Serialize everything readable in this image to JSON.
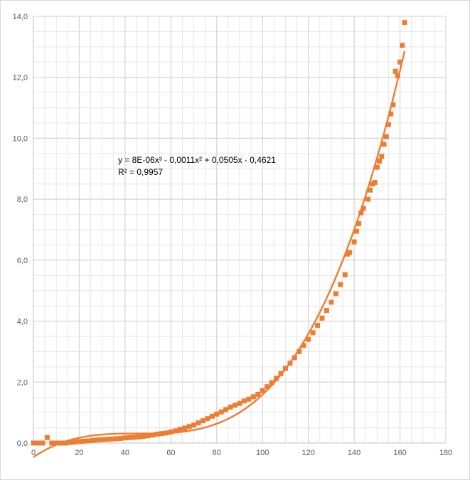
{
  "chart_data": {
    "type": "scatter",
    "title": "",
    "xlabel": "",
    "ylabel": "",
    "xlim": [
      0,
      180
    ],
    "ylim": [
      0,
      14
    ],
    "x_ticks": [
      "0",
      "20",
      "40",
      "60",
      "80",
      "100",
      "120",
      "140",
      "160",
      "180"
    ],
    "y_ticks": [
      "0,0",
      "2,0",
      "4,0",
      "6,0",
      "8,0",
      "10,0",
      "12,0",
      "14,0"
    ],
    "grid": true,
    "legend": "none",
    "marker_color": "#ED7D31",
    "trendline": {
      "type": "polynomial-3",
      "coefficients": [
        8e-06,
        -0.0011,
        0.0505,
        -0.4621
      ],
      "equation_label": "y = 8E-06x³ - 0,0011x² + 0,0505x - 0,4621",
      "r2_label": "R² = 0,9957",
      "color": "#ED7D31"
    },
    "series": [
      {
        "points": [
          [
            0,
            0.0
          ],
          [
            2,
            0.0
          ],
          [
            4,
            0.0
          ],
          [
            6,
            0.18
          ],
          [
            8,
            0.0
          ],
          [
            10,
            0.0
          ],
          [
            12,
            0.0
          ],
          [
            14,
            0.0
          ],
          [
            16,
            0.02
          ],
          [
            18,
            0.03
          ],
          [
            20,
            0.05
          ],
          [
            22,
            0.06
          ],
          [
            24,
            0.07
          ],
          [
            26,
            0.09
          ],
          [
            28,
            0.1
          ],
          [
            30,
            0.11
          ],
          [
            32,
            0.12
          ],
          [
            34,
            0.13
          ],
          [
            36,
            0.14
          ],
          [
            38,
            0.15
          ],
          [
            40,
            0.17
          ],
          [
            42,
            0.18
          ],
          [
            44,
            0.19
          ],
          [
            46,
            0.2
          ],
          [
            48,
            0.22
          ],
          [
            50,
            0.24
          ],
          [
            52,
            0.26
          ],
          [
            54,
            0.29
          ],
          [
            56,
            0.31
          ],
          [
            58,
            0.33
          ],
          [
            60,
            0.36
          ],
          [
            62,
            0.4
          ],
          [
            64,
            0.45
          ],
          [
            66,
            0.49
          ],
          [
            68,
            0.54
          ],
          [
            70,
            0.59
          ],
          [
            72,
            0.66
          ],
          [
            74,
            0.73
          ],
          [
            76,
            0.8
          ],
          [
            78,
            0.88
          ],
          [
            80,
            0.95
          ],
          [
            82,
            1.02
          ],
          [
            84,
            1.1
          ],
          [
            86,
            1.18
          ],
          [
            88,
            1.24
          ],
          [
            90,
            1.3
          ],
          [
            92,
            1.38
          ],
          [
            94,
            1.44
          ],
          [
            96,
            1.52
          ],
          [
            98,
            1.6
          ],
          [
            100,
            1.72
          ],
          [
            102,
            1.85
          ],
          [
            104,
            1.98
          ],
          [
            106,
            2.12
          ],
          [
            108,
            2.28
          ],
          [
            110,
            2.45
          ],
          [
            112,
            2.62
          ],
          [
            114,
            2.8
          ],
          [
            116,
            3.0
          ],
          [
            118,
            3.2
          ],
          [
            120,
            3.4
          ],
          [
            122,
            3.62
          ],
          [
            124,
            3.86
          ],
          [
            126,
            4.1
          ],
          [
            128,
            4.35
          ],
          [
            130,
            4.62
          ],
          [
            132,
            4.9
          ],
          [
            134,
            5.2
          ],
          [
            136,
            5.52
          ],
          [
            137,
            6.2
          ],
          [
            138,
            6.25
          ],
          [
            140,
            6.6
          ],
          [
            141,
            6.95
          ],
          [
            142,
            7.2
          ],
          [
            143,
            7.55
          ],
          [
            144,
            7.7
          ],
          [
            146,
            8.0
          ],
          [
            147,
            8.3
          ],
          [
            148,
            8.5
          ],
          [
            149,
            8.55
          ],
          [
            150,
            9.05
          ],
          [
            151,
            9.25
          ],
          [
            152,
            9.4
          ],
          [
            153,
            9.8
          ],
          [
            154,
            10.05
          ],
          [
            155,
            10.45
          ],
          [
            156,
            10.8
          ],
          [
            157,
            11.1
          ],
          [
            158,
            12.2
          ],
          [
            159,
            12.05
          ],
          [
            160,
            12.5
          ],
          [
            161,
            13.05
          ],
          [
            162,
            13.8
          ]
        ]
      }
    ]
  }
}
